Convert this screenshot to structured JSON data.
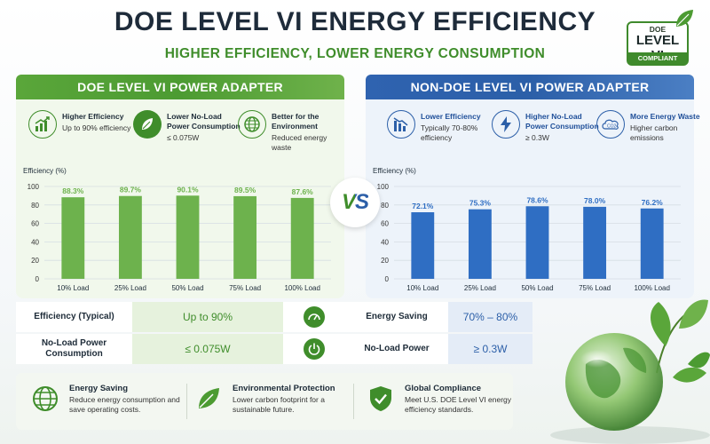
{
  "header": {
    "title": "DOE LEVEL VI ENERGY EFFICIENCY",
    "subtitle": "HIGHER EFFICIENCY, LOWER ENERGY CONSUMPTION"
  },
  "badge": {
    "line1": "DOE",
    "line2": "LEVEL VI",
    "line3": "COMPLIANT"
  },
  "vs_label": "VS",
  "left_panel": {
    "heading": "DOE LEVEL VI POWER ADAPTER",
    "features": [
      {
        "title": "Higher Efficiency",
        "desc": "Up to 90% efficiency",
        "icon": "bar-growth-icon"
      },
      {
        "title": "Lower No-Load Power Consumption",
        "desc": "≤ 0.075W",
        "icon": "leaf-icon"
      },
      {
        "title": "Better for the Environment",
        "desc": "Reduced energy waste",
        "icon": "globe-icon"
      }
    ]
  },
  "right_panel": {
    "heading": "NON-DOE LEVEL VI POWER ADAPTER",
    "features": [
      {
        "title": "Lower Efficiency",
        "desc": "Typically 70-80% efficiency",
        "icon": "bar-decline-icon"
      },
      {
        "title": "Higher No-Load Power Consumption",
        "desc": "≥ 0.3W",
        "icon": "lightning-icon"
      },
      {
        "title": "More Energy Waste",
        "desc": "Higher carbon emissions",
        "icon": "co2-icon"
      }
    ]
  },
  "chart_data": [
    {
      "type": "bar",
      "ylabel": "Efficiency (%)",
      "categories": [
        "10% Load",
        "25% Load",
        "50% Load",
        "75% Load",
        "100% Load"
      ],
      "values": [
        88.3,
        89.7,
        90.1,
        89.5,
        87.6
      ],
      "value_labels": [
        "88.3%",
        "89.7%",
        "90.1%",
        "89.5%",
        "87.6%"
      ],
      "yticks": [
        "0",
        "20",
        "40",
        "60",
        "80",
        "100"
      ],
      "ylim": [
        0,
        100
      ],
      "grid": true,
      "color": "#6db24d"
    },
    {
      "type": "bar",
      "ylabel": "Efficiency (%)",
      "categories": [
        "10% Load",
        "25% Load",
        "50% Load",
        "75% Load",
        "100% Load"
      ],
      "values": [
        72.1,
        75.3,
        78.6,
        78.0,
        76.2
      ],
      "value_labels": [
        "72.1%",
        "75.3%",
        "78.6%",
        "78.0%",
        "76.2%"
      ],
      "yticks": [
        "0",
        "20",
        "40",
        "60",
        "80",
        "100"
      ],
      "ylim": [
        0,
        100
      ],
      "grid": true,
      "color": "#2f6ec3"
    }
  ],
  "comparison": {
    "row1": {
      "label1": "Efficiency (Typical)",
      "value1": "Up to 90%",
      "label2": "Energy Saving",
      "value2": "70% – 80%"
    },
    "row2": {
      "label1": "No-Load Power Consumption",
      "value1": "≤ 0.075W",
      "label2": "No-Load Power",
      "value2": "≥ 0.3W"
    }
  },
  "bottom": [
    {
      "title": "Energy Saving",
      "desc": "Reduce energy consumption and save operating costs.",
      "icon": "globe-icon"
    },
    {
      "title": "Environmental Protection",
      "desc": "Lower carbon footprint for a sustainable future.",
      "icon": "leaf-icon"
    },
    {
      "title": "Global Compliance",
      "desc": "Meet U.S. DOE Level VI energy efficiency standards.",
      "icon": "shield-check-icon"
    }
  ],
  "colors": {
    "green": "#3f8d2b",
    "blue": "#2c5fa8",
    "dark": "#1e2b3a"
  }
}
